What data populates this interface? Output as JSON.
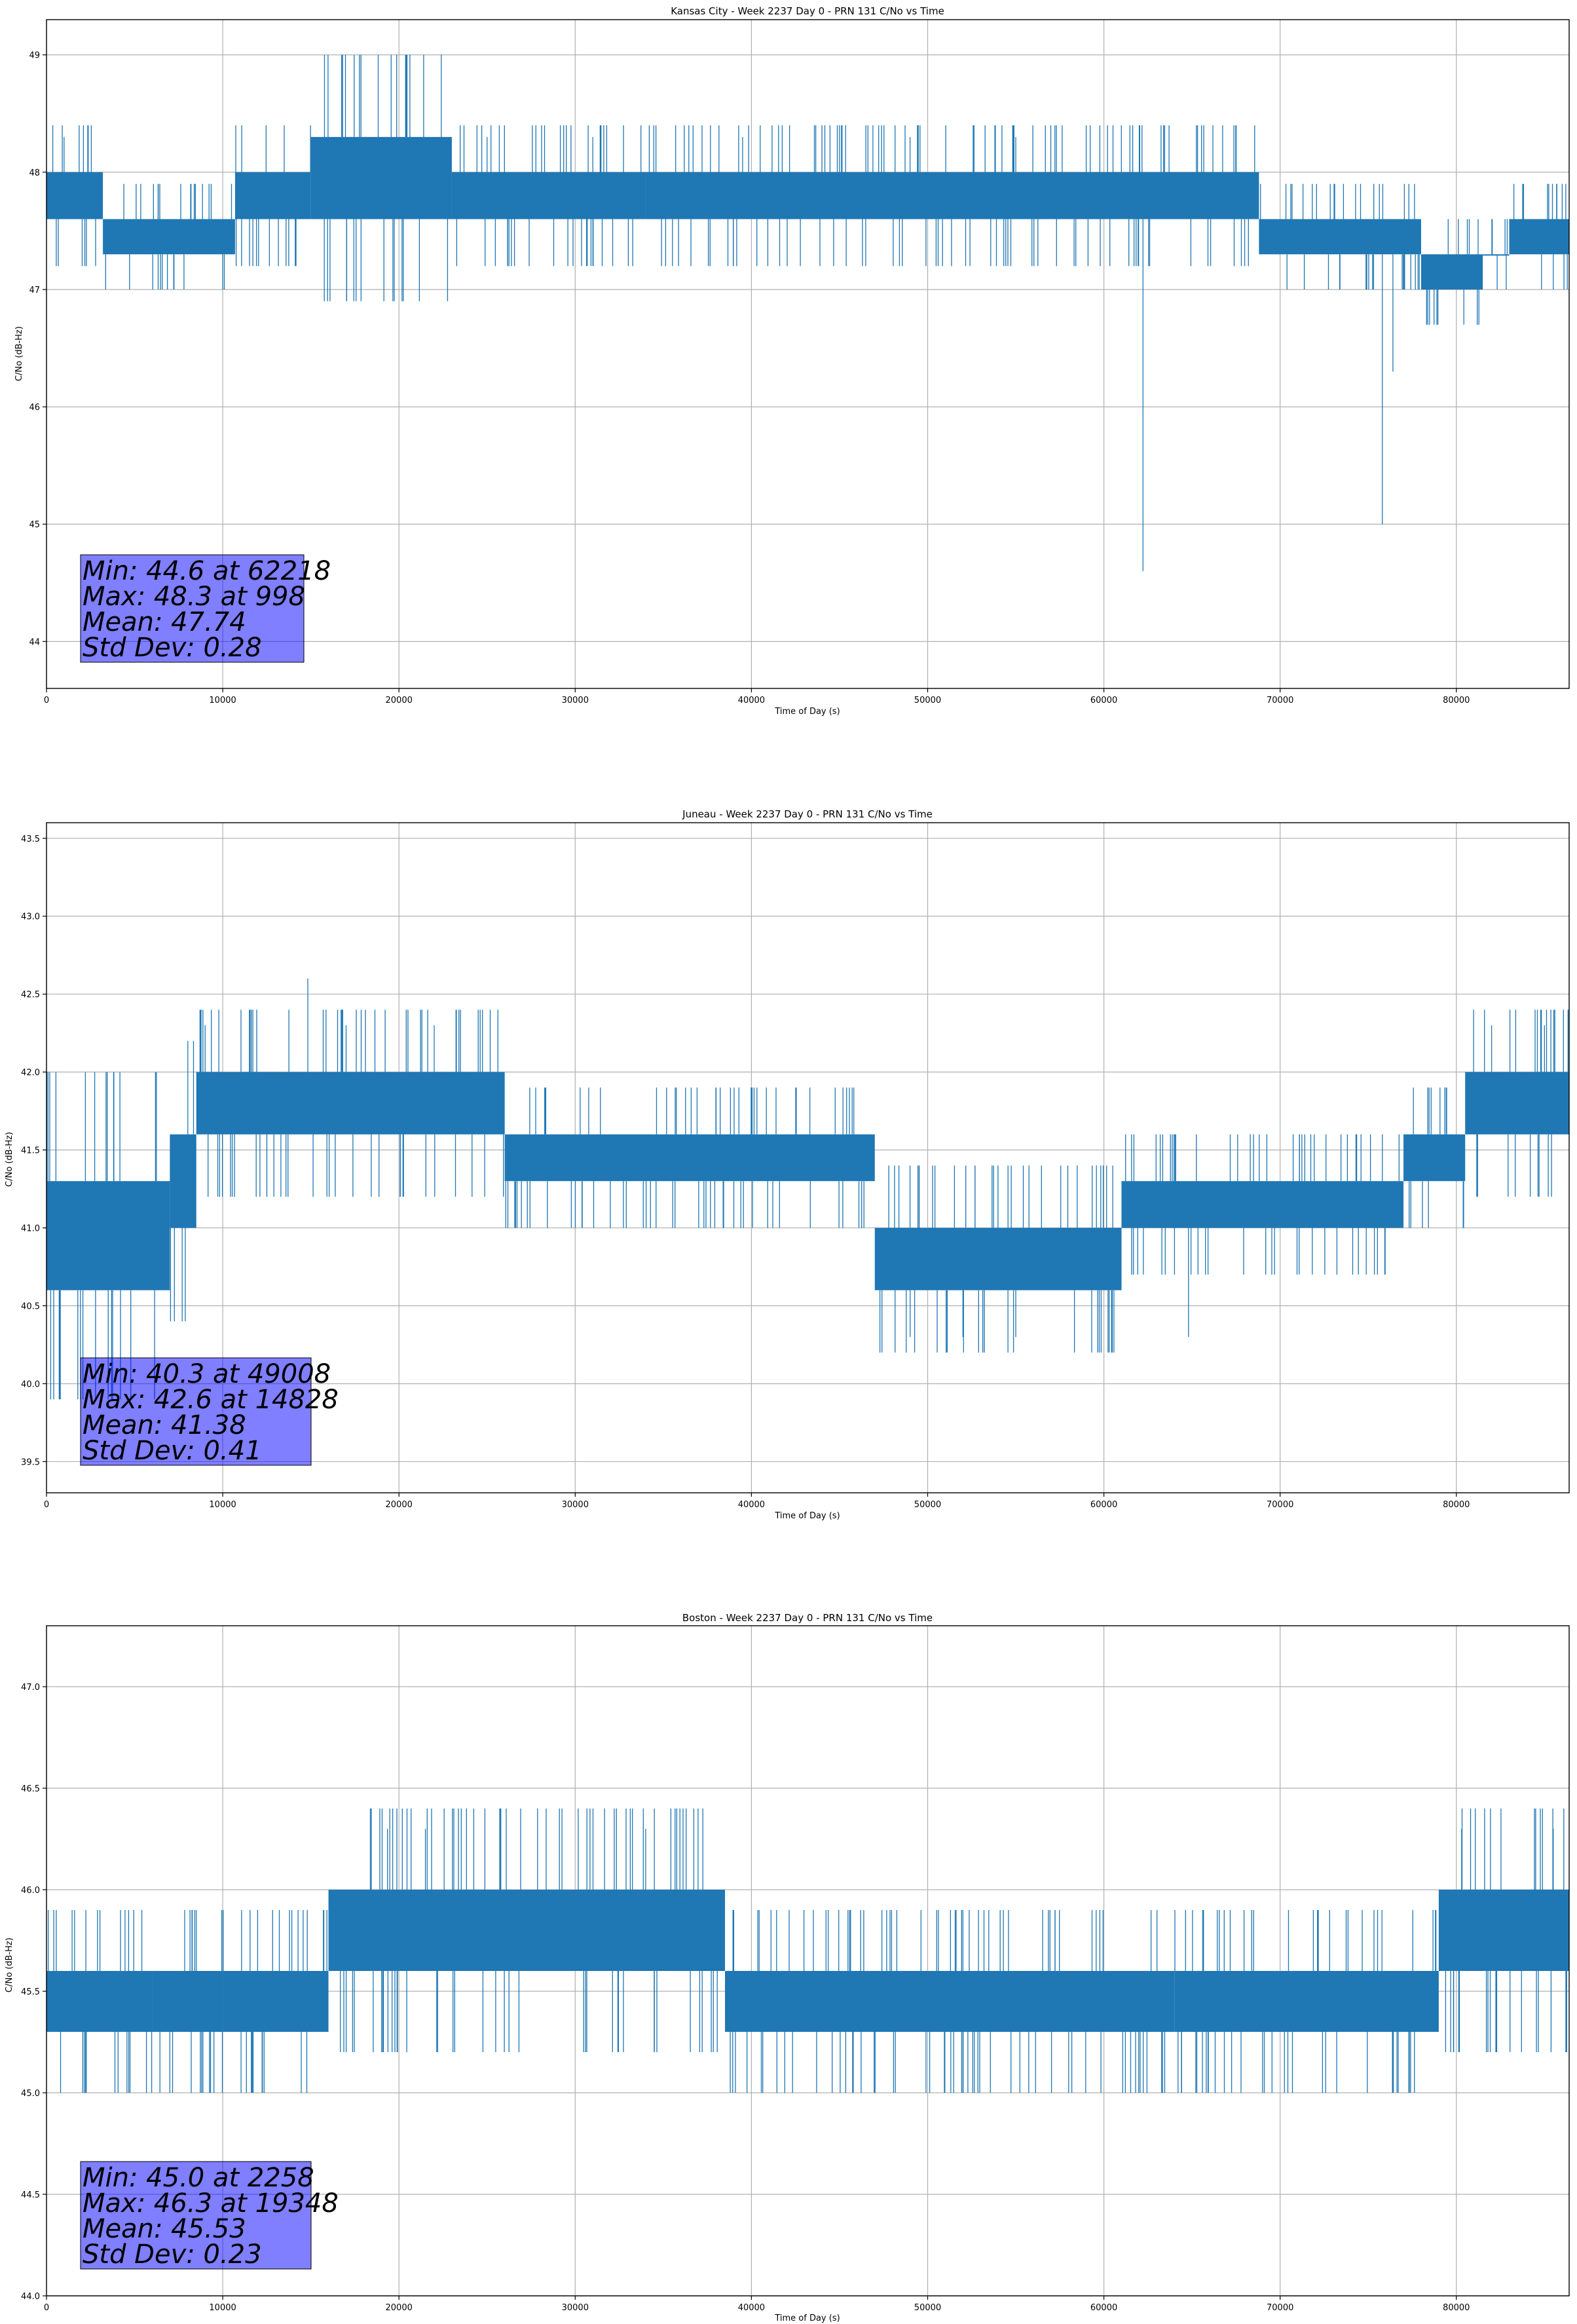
{
  "chart_data": [
    {
      "type": "line",
      "title": "Kansas City - Week 2237 Day 0 - PRN 131 C/No vs Time",
      "xlabel": "Time of Day (s)",
      "ylabel": "C/No (dB-Hz)",
      "xlim": [
        0,
        86400
      ],
      "ylim": [
        43.6,
        49.3
      ],
      "xticks": [
        0,
        10000,
        20000,
        30000,
        40000,
        50000,
        60000,
        70000,
        80000
      ],
      "yticks": [
        44,
        45,
        46,
        47,
        48,
        49
      ],
      "ytick_labels": [
        "44",
        "45",
        "46",
        "47",
        "48",
        "49"
      ],
      "grid": true,
      "series_color": "#1f77b4",
      "segments": [
        {
          "x0": 0,
          "x1": 3200,
          "lo": 47.6,
          "hi": 48.0
        },
        {
          "x0": 3200,
          "x1": 10700,
          "lo": 47.3,
          "hi": 47.6
        },
        {
          "x0": 10700,
          "x1": 15000,
          "lo": 47.6,
          "hi": 48.0
        },
        {
          "x0": 15000,
          "x1": 23000,
          "lo": 47.6,
          "hi": 48.3
        },
        {
          "x0": 23000,
          "x1": 34000,
          "lo": 47.6,
          "hi": 48.0
        },
        {
          "x0": 34000,
          "x1": 68800,
          "lo": 47.6,
          "hi": 48.0
        },
        {
          "x0": 68800,
          "x1": 78000,
          "lo": 47.3,
          "hi": 47.6
        },
        {
          "x0": 78000,
          "x1": 81500,
          "lo": 47.0,
          "hi": 47.3
        },
        {
          "x0": 81500,
          "x1": 83000,
          "lo": 47.3,
          "hi": 47.3
        },
        {
          "x0": 83000,
          "x1": 86400,
          "lo": 47.3,
          "hi": 47.6
        }
      ],
      "spikes": [
        {
          "x": 998,
          "y": 48.3
        },
        {
          "x": 17000,
          "y": 48.3
        },
        {
          "x": 25000,
          "y": 48.3
        },
        {
          "x": 31000,
          "y": 48.3
        },
        {
          "x": 39500,
          "y": 48.3
        },
        {
          "x": 49000,
          "y": 48.3
        },
        {
          "x": 55000,
          "y": 48.3
        },
        {
          "x": 62218,
          "y": 44.6
        },
        {
          "x": 75800,
          "y": 45.0
        },
        {
          "x": 76400,
          "y": 46.3
        },
        {
          "x": 80000,
          "y": 47.0
        }
      ],
      "stats": [
        "Min: 44.6 at 62218",
        "Max: 48.3 at 998",
        "Mean: 47.74",
        "Std Dev: 0.28"
      ]
    },
    {
      "type": "line",
      "title": "Juneau - Week 2237 Day 0 - PRN 131 C/No vs Time",
      "xlabel": "Time of Day (s)",
      "ylabel": "C/No (dB-Hz)",
      "xlim": [
        0,
        86400
      ],
      "ylim": [
        39.3,
        43.6
      ],
      "xticks": [
        0,
        10000,
        20000,
        30000,
        40000,
        50000,
        60000,
        70000,
        80000
      ],
      "yticks": [
        39.5,
        40.0,
        40.5,
        41.0,
        41.5,
        42.0,
        42.5,
        43.0,
        43.5
      ],
      "ytick_labels": [
        "39.5",
        "40.0",
        "40.5",
        "41.0",
        "41.5",
        "42.0",
        "42.5",
        "43.0",
        "43.5"
      ],
      "grid": true,
      "series_color": "#1f77b4",
      "segments": [
        {
          "x0": 0,
          "x1": 7000,
          "lo": 40.6,
          "hi": 41.3
        },
        {
          "x0": 7000,
          "x1": 8500,
          "lo": 41.0,
          "hi": 41.6
        },
        {
          "x0": 8500,
          "x1": 26000,
          "lo": 41.6,
          "hi": 42.0
        },
        {
          "x0": 26000,
          "x1": 47000,
          "lo": 41.3,
          "hi": 41.6
        },
        {
          "x0": 47000,
          "x1": 61000,
          "lo": 40.6,
          "hi": 41.0
        },
        {
          "x0": 61000,
          "x1": 77000,
          "lo": 41.0,
          "hi": 41.3
        },
        {
          "x0": 77000,
          "x1": 80500,
          "lo": 41.3,
          "hi": 41.6
        },
        {
          "x0": 80500,
          "x1": 86400,
          "lo": 41.6,
          "hi": 42.0
        }
      ],
      "spikes": [
        {
          "x": 9000,
          "y": 42.3
        },
        {
          "x": 14828,
          "y": 42.6
        },
        {
          "x": 17000,
          "y": 42.3
        },
        {
          "x": 22000,
          "y": 42.3
        },
        {
          "x": 49008,
          "y": 40.3
        },
        {
          "x": 52000,
          "y": 40.3
        },
        {
          "x": 55000,
          "y": 40.3
        },
        {
          "x": 64800,
          "y": 40.3
        },
        {
          "x": 82000,
          "y": 42.3
        },
        {
          "x": 85000,
          "y": 42.3
        }
      ],
      "stats": [
        "Min: 40.3 at 49008",
        "Max: 42.6 at 14828",
        "Mean: 41.38",
        "Std Dev: 0.41"
      ]
    },
    {
      "type": "line",
      "title": "Boston - Week 2237 Day 0 - PRN 131 C/No vs Time",
      "xlabel": "Time of Day (s)",
      "ylabel": "C/No (dB-Hz)",
      "xlim": [
        0,
        86400
      ],
      "ylim": [
        44.0,
        47.3
      ],
      "xticks": [
        0,
        10000,
        20000,
        30000,
        40000,
        50000,
        60000,
        70000,
        80000
      ],
      "yticks": [
        44.0,
        44.5,
        45.0,
        45.5,
        46.0,
        46.5,
        47.0
      ],
      "ytick_labels": [
        "44.0",
        "44.5",
        "45.0",
        "45.5",
        "46.0",
        "46.5",
        "47.0"
      ],
      "grid": true,
      "series_color": "#1f77b4",
      "segments": [
        {
          "x0": 0,
          "x1": 6000,
          "lo": 45.3,
          "hi": 45.6
        },
        {
          "x0": 6000,
          "x1": 10000,
          "lo": 45.3,
          "hi": 45.6
        },
        {
          "x0": 10000,
          "x1": 16000,
          "lo": 45.3,
          "hi": 45.6
        },
        {
          "x0": 16000,
          "x1": 38500,
          "lo": 45.6,
          "hi": 46.0
        },
        {
          "x0": 38500,
          "x1": 64000,
          "lo": 45.3,
          "hi": 45.6
        },
        {
          "x0": 64000,
          "x1": 79000,
          "lo": 45.3,
          "hi": 45.6
        },
        {
          "x0": 79000,
          "x1": 86400,
          "lo": 45.6,
          "hi": 46.0
        }
      ],
      "spikes": [
        {
          "x": 2258,
          "y": 45.0
        },
        {
          "x": 7000,
          "y": 45.0
        },
        {
          "x": 9500,
          "y": 45.0
        },
        {
          "x": 19348,
          "y": 46.3
        },
        {
          "x": 21500,
          "y": 46.3
        },
        {
          "x": 34000,
          "y": 46.3
        },
        {
          "x": 52000,
          "y": 45.0
        },
        {
          "x": 58000,
          "y": 45.0
        },
        {
          "x": 80300,
          "y": 46.3
        },
        {
          "x": 85500,
          "y": 46.3
        }
      ],
      "stats": [
        "Min: 45.0 at 2258",
        "Max: 46.3 at 19348",
        "Mean: 45.53",
        "Std Dev: 0.23"
      ]
    }
  ]
}
